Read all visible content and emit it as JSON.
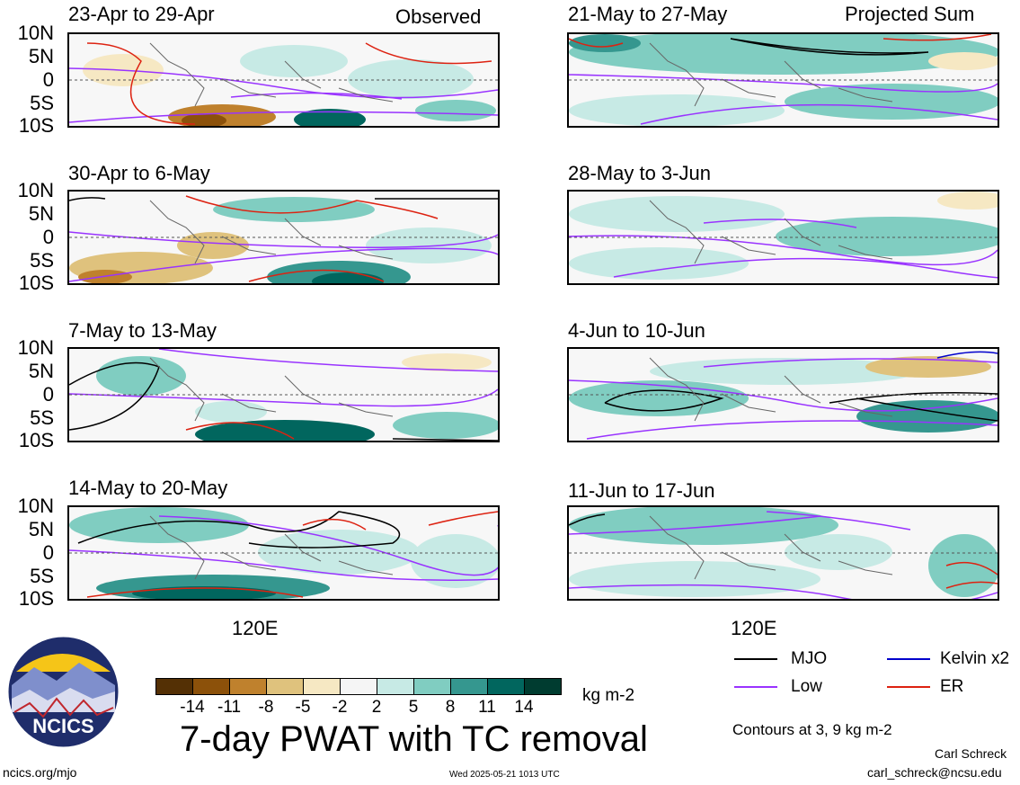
{
  "observed_label": "Observed",
  "projected_label": "Projected Sum",
  "lat_labels": [
    "10N",
    "5N",
    "0",
    "5S",
    "10S"
  ],
  "lon_label": "120E",
  "panels": [
    {
      "title": "23-Apr to 29-Apr"
    },
    {
      "title": "30-Apr to 6-May"
    },
    {
      "title": "7-May to 13-May"
    },
    {
      "title": "14-May to 20-May"
    },
    {
      "title": "21-May to 27-May"
    },
    {
      "title": "28-May to 3-Jun"
    },
    {
      "title": "4-Jun to 10-Jun"
    },
    {
      "title": "11-Jun to 17-Jun"
    }
  ],
  "legend": {
    "mjo": "MJO",
    "mjo_color": "#000000",
    "kelvin": "Kelvin x2",
    "kelvin_color": "#0000cc",
    "low": "Low",
    "low_color": "#9933ff",
    "er": "ER",
    "er_color": "#dd2211"
  },
  "colorbar": {
    "ticks": [
      "-14",
      "-11",
      "-8",
      "-5",
      "-2",
      "2",
      "5",
      "8",
      "11",
      "14"
    ],
    "colors": [
      "#543005",
      "#8c510a",
      "#bf812d",
      "#dfc27d",
      "#f6e8c3",
      "#f5f5f5",
      "#c7eae5",
      "#80cdc1",
      "#35978f",
      "#01665e",
      "#003c30"
    ],
    "units": "kg m-2"
  },
  "main_title": "7-day PWAT with TC removal",
  "contours_note": "Contours at 3, 9 kg m-2",
  "author": "Carl Schreck",
  "email": "carl_schreck@ncsu.edu",
  "site": "ncics.org/mjo",
  "timestamp": "Wed 2025-05-21 1013 UTC",
  "logo_text": "NCICS"
}
